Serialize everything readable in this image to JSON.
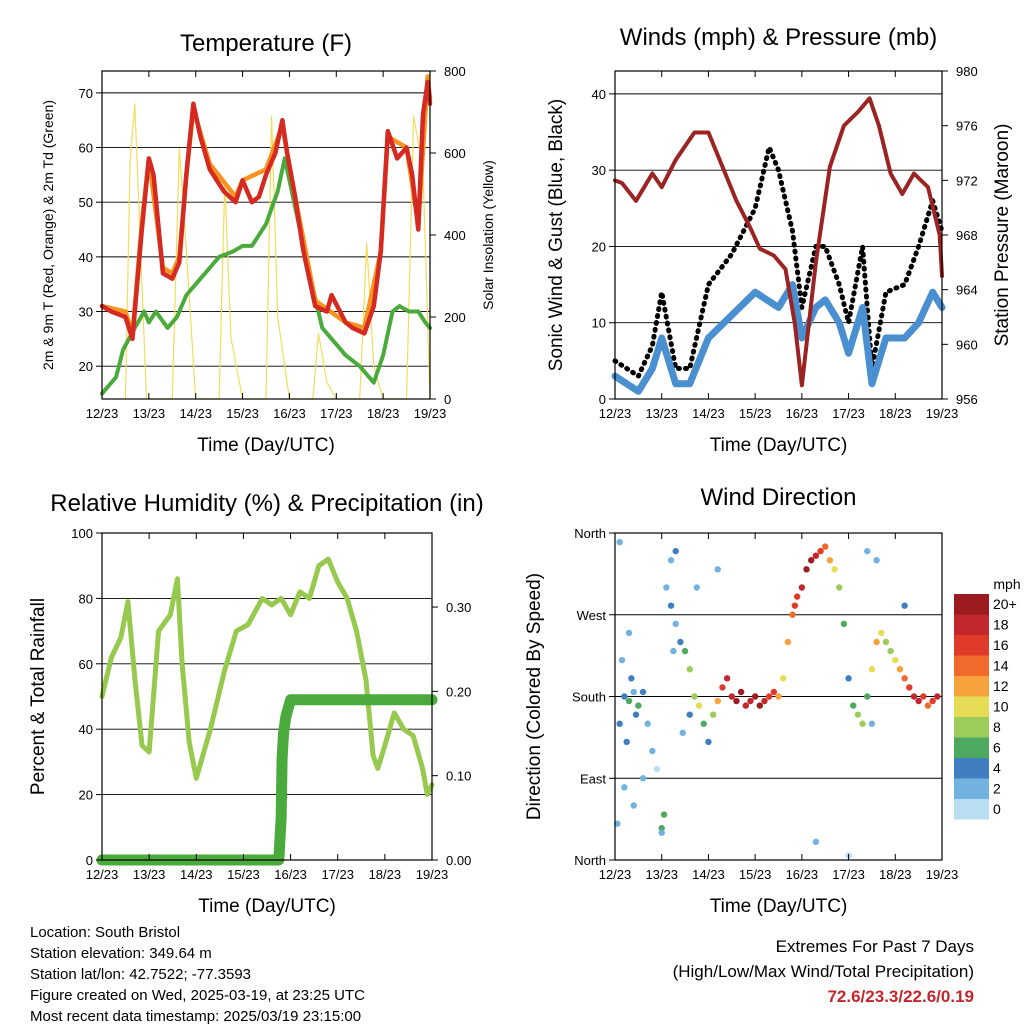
{
  "panels": {
    "temperature": {
      "title": "Temperature (F)",
      "xlabel": "Time (Day/UTC)",
      "ylabel_left": "2m & 9m T (Red, Orange) & 2m Td (Green)",
      "ylabel_right": "Solar Insolation (Yellow)"
    },
    "winds": {
      "title": "Winds (mph) & Pressure (mb)",
      "xlabel": "Time (Day/UTC)",
      "ylabel_left": "Sonic Wind & Gust (Blue, Black)",
      "ylabel_right": "Station Pressure (Maroon)"
    },
    "humidity": {
      "title": "Relative Humidity (%) & Precipitation (in)",
      "xlabel": "Time (Day/UTC)",
      "ylabel_left": "Percent & Total Rainfall"
    },
    "direction": {
      "title": "Wind Direction",
      "xlabel": "Time (Day/UTC)",
      "ylabel_left": "Direction (Colored By Speed)",
      "colorbar_title": "mph",
      "colorbar_labels": [
        "20+",
        "18",
        "16",
        "14",
        "12",
        "10",
        "8",
        "6",
        "4",
        "2",
        "0"
      ],
      "colorbar_colors": [
        "#9b1b1e",
        "#c1272d",
        "#e03a2a",
        "#f16a2b",
        "#f7a23c",
        "#e6dc55",
        "#9ccc5a",
        "#4da860",
        "#3f7fbf",
        "#72b1e0",
        "#b9def2"
      ]
    }
  },
  "info": {
    "location": "Location: South Bristol",
    "elevation": "Station elevation: 349.64 m",
    "latlon": "Station lat/lon: 42.7522; -77.3593",
    "created": "Figure created on Wed, 2025-03-19, at 23:25 UTC",
    "recent": "Most recent data timestamp: 2025/03/19 23:15:00"
  },
  "extremes": {
    "line1": "Extremes For Past 7 Days",
    "line2": "(High/Low/Max Wind/Total Precipitation)",
    "values": "72.6/23.3/22.6/0.19"
  },
  "chart_data": [
    {
      "id": "temperature",
      "type": "line",
      "title": "Temperature (F)",
      "xlabel": "Time (Day/UTC)",
      "ylabel": "2m & 9m T (Red, Orange) & 2m Td (Green)",
      "ylabel_right": "Solar Insolation (Yellow)",
      "x_ticks": [
        "12/23",
        "13/23",
        "14/23",
        "15/23",
        "16/23",
        "17/23",
        "18/23",
        "19/23"
      ],
      "xlim": [
        0,
        7
      ],
      "ylim": [
        14,
        74
      ],
      "y_ticks": [
        20,
        30,
        40,
        50,
        60,
        70
      ],
      "ylim_right": [
        0,
        800
      ],
      "y_ticks_right": [
        0,
        200,
        400,
        600,
        800
      ],
      "grid": true,
      "series": [
        {
          "name": "2m T",
          "color": "#d42a22",
          "axis": "left",
          "x": [
            0,
            0.2,
            0.5,
            0.65,
            0.85,
            1.0,
            1.1,
            1.3,
            1.5,
            1.65,
            1.8,
            1.95,
            2.1,
            2.3,
            2.6,
            2.85,
            3.0,
            3.2,
            3.35,
            3.5,
            3.7,
            3.85,
            3.95,
            4.1,
            4.3,
            4.55,
            4.8,
            4.9,
            5.2,
            5.35,
            5.6,
            5.8,
            5.95,
            6.1,
            6.3,
            6.5,
            6.62,
            6.75,
            6.85,
            6.95,
            7.0
          ],
          "y": [
            31,
            30,
            29,
            25,
            45,
            58,
            55,
            37,
            36,
            39,
            55,
            68,
            62,
            56,
            52,
            50,
            54,
            50,
            51,
            55,
            59,
            65,
            59,
            52,
            41,
            31,
            30,
            33,
            28,
            27,
            26,
            31,
            41,
            63,
            58,
            60,
            55,
            45,
            66,
            72,
            68
          ]
        },
        {
          "name": "9m T",
          "color": "#f7931e",
          "axis": "left",
          "x": [
            0,
            0.5,
            0.65,
            0.85,
            1.0,
            1.3,
            1.5,
            1.65,
            1.8,
            1.95,
            2.3,
            2.85,
            3.0,
            3.5,
            3.85,
            4.1,
            4.55,
            5.2,
            5.6,
            5.95,
            6.1,
            6.5,
            6.75,
            6.95,
            7.0
          ],
          "y": [
            31,
            30,
            26,
            46,
            58,
            38,
            37,
            40,
            55,
            67,
            57,
            51,
            54,
            56,
            64,
            52,
            32,
            28,
            27,
            41,
            62,
            60,
            46,
            73,
            69
          ]
        },
        {
          "name": "2m Td",
          "color": "#4aaa3c",
          "axis": "left",
          "x": [
            0,
            0.3,
            0.45,
            0.7,
            0.9,
            1.0,
            1.15,
            1.4,
            1.6,
            1.8,
            2.0,
            2.2,
            2.5,
            2.8,
            3.0,
            3.2,
            3.5,
            3.75,
            3.9,
            4.1,
            4.4,
            4.7,
            5.0,
            5.2,
            5.5,
            5.8,
            6.0,
            6.2,
            6.35,
            6.55,
            6.75,
            6.9,
            7.0
          ],
          "y": [
            15,
            18,
            23,
            27,
            30,
            28,
            30,
            27,
            29,
            33,
            35,
            37,
            40,
            41,
            42,
            42,
            46,
            52,
            58,
            50,
            38,
            27,
            24,
            22,
            20,
            17,
            22,
            30,
            31,
            30,
            30,
            28,
            27
          ]
        },
        {
          "name": "Solar Insolation",
          "color": "#f3dc5a",
          "axis": "right",
          "x": [
            0.5,
            0.6,
            0.7,
            0.95,
            1.5,
            1.65,
            1.75,
            2.0,
            2.5,
            2.62,
            2.75,
            3.0,
            3.5,
            3.62,
            3.75,
            4.0,
            4.5,
            4.62,
            4.8,
            5.0,
            5.5,
            5.65,
            5.8,
            6.0,
            6.5,
            6.65,
            6.85,
            7.0
          ],
          "y": [
            0,
            580,
            720,
            0,
            0,
            610,
            450,
            0,
            0,
            530,
            150,
            0,
            0,
            690,
            200,
            0,
            0,
            160,
            40,
            0,
            0,
            380,
            80,
            0,
            0,
            690,
            560,
            0
          ]
        }
      ]
    },
    {
      "id": "winds",
      "type": "line",
      "title": "Winds (mph) & Pressure (mb)",
      "xlabel": "Time (Day/UTC)",
      "ylabel": "Sonic Wind & Gust (Blue, Black)",
      "ylabel_right": "Station Pressure (Maroon)",
      "x_ticks": [
        "12/23",
        "13/23",
        "14/23",
        "15/23",
        "16/23",
        "17/23",
        "18/23",
        "19/23"
      ],
      "xlim": [
        0,
        7
      ],
      "ylim": [
        0,
        43
      ],
      "y_ticks": [
        0,
        10,
        20,
        30,
        40
      ],
      "ylim_right": [
        956,
        980
      ],
      "y_ticks_right": [
        956,
        960,
        964,
        968,
        972,
        976,
        980
      ],
      "grid": true,
      "series": [
        {
          "name": "Sonic Wind",
          "color": "#4a90d0",
          "axis": "left",
          "x": [
            0,
            0.5,
            0.8,
            1.0,
            1.3,
            1.6,
            2.0,
            2.5,
            3.0,
            3.5,
            3.8,
            4.0,
            4.3,
            4.5,
            4.8,
            5.0,
            5.3,
            5.5,
            5.8,
            6.2,
            6.5,
            6.8,
            7.0
          ],
          "y": [
            3,
            1,
            4,
            8,
            2,
            2,
            8,
            11,
            14,
            12,
            15,
            8,
            12,
            13,
            10,
            6,
            12,
            2,
            8,
            8,
            10,
            14,
            12
          ]
        },
        {
          "name": "Gust",
          "color": "#000000",
          "axis": "left",
          "x": [
            0,
            0.5,
            0.8,
            1.0,
            1.3,
            1.6,
            2.0,
            2.5,
            3.0,
            3.3,
            3.5,
            3.8,
            4.0,
            4.3,
            4.5,
            4.8,
            5.0,
            5.3,
            5.5,
            5.8,
            6.2,
            6.5,
            6.8,
            7.0
          ],
          "y": [
            5,
            3,
            7,
            14,
            4,
            4,
            15,
            19,
            25,
            33,
            30,
            22,
            12,
            20,
            20,
            15,
            10,
            20,
            4,
            14,
            15,
            20,
            26,
            22
          ]
        },
        {
          "name": "Station Pressure",
          "color": "#9b2423",
          "axis": "right",
          "x": [
            0,
            0.15,
            0.45,
            0.8,
            1.0,
            1.3,
            1.7,
            2.0,
            2.3,
            2.6,
            2.9,
            3.1,
            3.4,
            3.65,
            3.85,
            4.0,
            4.3,
            4.6,
            4.9,
            5.2,
            5.45,
            5.65,
            5.9,
            6.15,
            6.4,
            6.7,
            6.95,
            7.0
          ],
          "y": [
            972.0,
            971.8,
            970.5,
            972.5,
            971.5,
            973.5,
            975.5,
            975.5,
            973.0,
            970.5,
            968.5,
            967.0,
            966.5,
            965.5,
            961.5,
            957.0,
            966.0,
            973.0,
            976.0,
            977.0,
            978.0,
            976.0,
            972.5,
            971.0,
            972.5,
            971.5,
            968.0,
            965.0
          ]
        }
      ]
    },
    {
      "id": "humidity",
      "type": "line",
      "title": "Relative Humidity (%) & Precipitation (in)",
      "xlabel": "Time (Day/UTC)",
      "ylabel": "Percent & Total Rainfall",
      "x_ticks": [
        "12/23",
        "13/23",
        "14/23",
        "15/23",
        "16/23",
        "17/23",
        "18/23",
        "19/23"
      ],
      "xlim": [
        0,
        7
      ],
      "ylim": [
        0,
        100
      ],
      "y_ticks": [
        0,
        20,
        40,
        60,
        80,
        100
      ],
      "ylim_right": [
        0,
        0.3878
      ],
      "y_ticks_right": [
        "0.00",
        "0.10",
        "0.20",
        "0.30"
      ],
      "grid": true,
      "series": [
        {
          "name": "Relative Humidity",
          "color": "#96c94d",
          "axis": "left",
          "x": [
            0,
            0.2,
            0.4,
            0.55,
            0.7,
            0.85,
            1.0,
            1.2,
            1.45,
            1.6,
            1.7,
            1.85,
            2.0,
            2.3,
            2.6,
            2.85,
            3.1,
            3.4,
            3.6,
            3.8,
            4.0,
            4.2,
            4.4,
            4.6,
            4.8,
            5.0,
            5.2,
            5.4,
            5.6,
            5.75,
            5.85,
            6.0,
            6.2,
            6.4,
            6.6,
            6.8,
            6.9,
            7.0
          ],
          "y": [
            50,
            62,
            68,
            79,
            55,
            35,
            33,
            70,
            75,
            86,
            60,
            36,
            25,
            40,
            58,
            70,
            72,
            80,
            78,
            80,
            75,
            82,
            80,
            90,
            92,
            85,
            80,
            70,
            55,
            32,
            28,
            35,
            45,
            40,
            38,
            28,
            20,
            23
          ]
        },
        {
          "name": "Total Rainfall",
          "color": "#4aaa3c",
          "axis": "right",
          "x": [
            0,
            0.5,
            1.0,
            1.5,
            2.0,
            2.5,
            3.0,
            3.5,
            3.75,
            3.77,
            3.8,
            3.82,
            3.85,
            3.9,
            4.0,
            4.5,
            5.0,
            5.5,
            6.0,
            6.5,
            7.0
          ],
          "y": [
            0,
            0,
            0,
            0,
            0,
            0,
            0,
            0,
            0,
            0.02,
            0.05,
            0.12,
            0.15,
            0.17,
            0.19,
            0.19,
            0.19,
            0.19,
            0.19,
            0.19,
            0.19
          ]
        }
      ]
    },
    {
      "id": "direction",
      "type": "scatter",
      "title": "Wind Direction",
      "xlabel": "Time (Day/UTC)",
      "ylabel": "Direction (Colored By Speed)",
      "x_ticks": [
        "12/23",
        "13/23",
        "14/23",
        "15/23",
        "16/23",
        "17/23",
        "18/23",
        "19/23"
      ],
      "xlim": [
        0,
        7
      ],
      "ylim": [
        0,
        360
      ],
      "y_tick_values": [
        0,
        90,
        180,
        270,
        360
      ],
      "y_tick_labels": [
        "North",
        "East",
        "South",
        "West",
        "North"
      ],
      "grid": true,
      "points_x": [
        0.05,
        0.1,
        0.15,
        0.2,
        0.25,
        0.3,
        0.35,
        0.4,
        0.45,
        0.5,
        0.6,
        0.7,
        0.8,
        1.0,
        1.05,
        1.1,
        1.2,
        1.3,
        1.4,
        1.5,
        1.6,
        1.7,
        1.8,
        1.9,
        2.0,
        2.1,
        2.2,
        2.3,
        2.4,
        2.5,
        2.6,
        2.7,
        2.8,
        2.9,
        3.0,
        3.1,
        3.2,
        3.3,
        3.4,
        3.5,
        3.6,
        3.7,
        3.8,
        3.85,
        3.9,
        4.0,
        4.1,
        4.2,
        4.3,
        4.4,
        4.5,
        4.6,
        4.7,
        4.8,
        4.9,
        5.0,
        5.1,
        5.2,
        5.3,
        5.4,
        5.5,
        5.6,
        5.7,
        5.8,
        5.9,
        6.0,
        6.1,
        6.2,
        6.3,
        6.4,
        6.5,
        6.6,
        6.7,
        6.8,
        6.9,
        0.2,
        0.4,
        0.6,
        0.9,
        1.0,
        1.25,
        1.45,
        1.6,
        1.75,
        2.2,
        5.5,
        5.6,
        6.2,
        0.1,
        0.3,
        1.2,
        1.3,
        4.3,
        5.0,
        5.4
      ],
      "points_y": [
        40,
        150,
        220,
        180,
        130,
        175,
        200,
        185,
        160,
        170,
        185,
        150,
        120,
        35,
        50,
        300,
        280,
        260,
        240,
        230,
        210,
        180,
        170,
        150,
        130,
        160,
        175,
        190,
        200,
        180,
        175,
        185,
        170,
        175,
        180,
        170,
        175,
        180,
        185,
        180,
        200,
        240,
        270,
        280,
        290,
        300,
        320,
        330,
        335,
        340,
        345,
        330,
        320,
        300,
        260,
        200,
        170,
        160,
        150,
        180,
        210,
        240,
        250,
        240,
        230,
        220,
        210,
        200,
        190,
        180,
        175,
        180,
        170,
        175,
        180,
        80,
        60,
        90,
        100,
        30,
        230,
        140,
        160,
        300,
        320,
        150,
        330,
        280,
        350,
        250,
        330,
        340,
        20,
        5,
        340
      ],
      "points_speed": [
        1,
        3,
        2,
        3,
        4,
        5,
        3,
        2,
        4,
        6,
        3,
        2,
        1,
        5,
        6,
        2,
        3,
        2,
        3,
        5,
        7,
        8,
        10,
        6,
        4,
        8,
        12,
        16,
        18,
        18,
        19,
        20,
        18,
        17,
        19,
        20,
        18,
        16,
        15,
        12,
        10,
        12,
        14,
        15,
        16,
        18,
        19,
        20,
        18,
        16,
        14,
        12,
        10,
        8,
        6,
        4,
        5,
        7,
        8,
        6,
        10,
        12,
        9,
        8,
        7,
        10,
        12,
        14,
        16,
        18,
        18,
        16,
        14,
        16,
        18,
        1,
        2,
        1,
        0,
        2,
        1,
        2,
        3,
        2,
        1,
        1,
        2,
        3,
        1,
        2,
        2,
        3,
        1,
        0,
        1
      ]
    }
  ]
}
